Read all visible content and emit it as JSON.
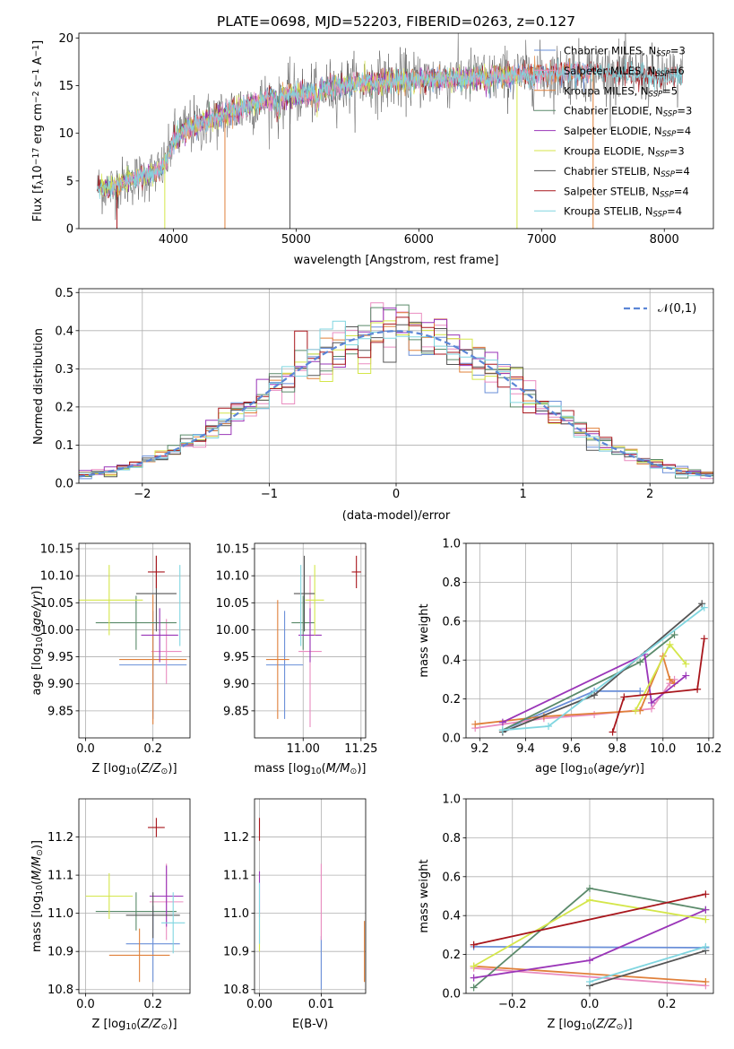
{
  "colors": {
    "chabrier_miles": "#6a8fd8",
    "salpeter_miles": "#e98cc0",
    "kroupa_miles": "#e0803a",
    "chabrier_elodie": "#5a8a6a",
    "salpeter_elodie": "#9a35b8",
    "kroupa_elodie": "#d4e64a",
    "chabrier_stelib": "#555555",
    "salpeter_stelib": "#a8161c",
    "kroupa_stelib": "#80d6e0",
    "normal": "#5b86d6"
  },
  "chart_data": [
    {
      "type": "line",
      "title": "PLATE=0698, MJD=52203, FIBERID=0263, z=0.127",
      "xlabel": "wavelength [Angstrom, rest frame]",
      "ylabel": "Flux [f_λ 10^-17 erg cm^-2 s^-1 A^-1]",
      "xlim": [
        3230,
        8400
      ],
      "ylim": [
        0,
        20.5
      ],
      "xticks": [
        4000,
        5000,
        6000,
        7000,
        8000
      ],
      "yticks": [
        0,
        5,
        10,
        15,
        20
      ],
      "legend": "top-right",
      "series": [
        {
          "name": "Chabrier MILES, N_SSP=3",
          "key": "chabrier_miles"
        },
        {
          "name": "Salpeter MILES, N_SSP=6",
          "key": "salpeter_miles"
        },
        {
          "name": "Kroupa MILES, N_SSP=5",
          "key": "kroupa_miles"
        },
        {
          "name": "Chabrier ELODIE, N_SSP=3",
          "key": "chabrier_elodie"
        },
        {
          "name": "Salpeter ELODIE, N_SSP=4",
          "key": "salpeter_elodie"
        },
        {
          "name": "Kroupa ELODIE, N_SSP=3",
          "key": "kroupa_elodie"
        },
        {
          "name": "Chabrier STELIB, N_SSP=4",
          "key": "chabrier_stelib"
        },
        {
          "name": "Salpeter STELIB, N_SSP=4",
          "key": "salpeter_stelib"
        },
        {
          "name": "Kroupa STELIB, N_SSP=4",
          "key": "kroupa_stelib"
        }
      ],
      "continuum": {
        "x": [
          3380,
          3500,
          3600,
          3700,
          3800,
          3900,
          3950,
          4000,
          4100,
          4300,
          4500,
          4700,
          4900,
          5100,
          5300,
          5500,
          5800,
          6100,
          6400,
          6700,
          7000,
          7300,
          7600,
          7900,
          8150
        ],
        "y": [
          4.3,
          4.3,
          4.9,
          5.3,
          5.6,
          6.2,
          7.2,
          9.3,
          10.4,
          11.4,
          12.4,
          13.3,
          13.9,
          14.1,
          14.8,
          15.2,
          15.5,
          15.7,
          15.8,
          16.0,
          16.2,
          16.4,
          16.4,
          16.0,
          15.8
        ]
      }
    },
    {
      "type": "bar",
      "xlabel": "(data-model)/error",
      "ylabel": "Normed distribution",
      "xlim": [
        -2.5,
        2.5
      ],
      "ylim": [
        0,
        0.51
      ],
      "xticks": [
        -2,
        -1,
        0,
        1,
        2
      ],
      "yticks": [
        0.0,
        0.1,
        0.2,
        0.3,
        0.4,
        0.5
      ],
      "bin_width": 0.1,
      "legend": "top-right",
      "reference_series": {
        "name": "𝒩(0,1)",
        "mean": 0,
        "sigma": 1
      }
    },
    {
      "type": "scatter",
      "xlabel": "Z [log10(Z/Z⊙)]",
      "ylabel": "age  [log10(age/yr)]",
      "xlim": [
        -0.02,
        0.31
      ],
      "ylim": [
        9.8,
        10.16
      ],
      "xticks": [
        0.0,
        0.2
      ],
      "yticks": [
        9.85,
        9.9,
        9.95,
        10.0,
        10.05,
        10.1,
        10.15
      ],
      "series": [
        {
          "key": "chabrier_miles",
          "x": 0.2,
          "y": 9.935,
          "xerr": 0.1,
          "yerr": 0.1
        },
        {
          "key": "salpeter_miles",
          "x": 0.24,
          "y": 9.96,
          "xerr": 0.045,
          "yerr": 0.06
        },
        {
          "key": "kroupa_miles",
          "x": 0.2,
          "y": 9.945,
          "xerr": 0.1,
          "yerr": 0.12
        },
        {
          "key": "chabrier_elodie",
          "x": 0.15,
          "y": 10.013,
          "xerr": 0.12,
          "yerr": 0.05
        },
        {
          "key": "salpeter_elodie",
          "x": 0.22,
          "y": 9.99,
          "xerr": 0.055,
          "yerr": 0.05
        },
        {
          "key": "kroupa_elodie",
          "x": 0.07,
          "y": 10.055,
          "xerr": 0.1,
          "yerr": 0.065
        },
        {
          "key": "chabrier_stelib",
          "x": 0.21,
          "y": 10.067,
          "xerr": 0.06,
          "yerr": 0.07
        },
        {
          "key": "salpeter_stelib",
          "x": 0.21,
          "y": 10.107,
          "xerr": 0.025,
          "yerr": 0.03
        },
        {
          "key": "kroupa_stelib",
          "x": 0.28,
          "y": 10.045,
          "xerr": 0.0,
          "yerr": 0.075
        }
      ]
    },
    {
      "type": "scatter",
      "xlabel": "mass [log10(M/M⊙)]",
      "ylabel": "",
      "xlim": [
        10.79,
        11.27
      ],
      "ylim": [
        9.8,
        10.16
      ],
      "xticks": [
        10.75,
        11.0,
        11.25
      ],
      "yticks": [
        9.85,
        9.9,
        9.95,
        10.0,
        10.05,
        10.1,
        10.15
      ],
      "series": [
        {
          "key": "chabrier_miles",
          "x": 10.92,
          "y": 9.935,
          "xerr": 0.08,
          "yerr": 0.1
        },
        {
          "key": "salpeter_miles",
          "x": 11.03,
          "y": 9.96,
          "xerr": 0.05,
          "yerr": 0.14
        },
        {
          "key": "kroupa_miles",
          "x": 10.89,
          "y": 9.945,
          "xerr": 0.05,
          "yerr": 0.11
        },
        {
          "key": "chabrier_elodie",
          "x": 11.0,
          "y": 10.013,
          "xerr": 0.05,
          "yerr": 0.05
        },
        {
          "key": "salpeter_elodie",
          "x": 11.03,
          "y": 9.99,
          "xerr": 0.05,
          "yerr": 0.05
        },
        {
          "key": "kroupa_elodie",
          "x": 11.05,
          "y": 10.055,
          "xerr": 0.04,
          "yerr": 0.065
        },
        {
          "key": "chabrier_stelib",
          "x": 11.005,
          "y": 10.067,
          "xerr": 0.045,
          "yerr": 0.07
        },
        {
          "key": "salpeter_stelib",
          "x": 11.23,
          "y": 10.107,
          "xerr": 0.02,
          "yerr": 0.03
        },
        {
          "key": "kroupa_stelib",
          "x": 10.99,
          "y": 10.045,
          "xerr": 0.0,
          "yerr": 0.075
        }
      ]
    },
    {
      "type": "line",
      "xlabel": "age  [log10(age/yr)]",
      "ylabel": "mass weight",
      "xlim": [
        9.14,
        10.22
      ],
      "ylim": [
        0,
        1.0
      ],
      "xticks": [
        9.2,
        9.4,
        9.6,
        9.8,
        10.0,
        10.2
      ],
      "yticks": [
        0.0,
        0.2,
        0.4,
        0.6,
        0.8,
        1.0
      ],
      "series": [
        {
          "key": "chabrier_miles",
          "x": [
            9.3,
            9.7,
            9.9
          ],
          "y": [
            0.04,
            0.24,
            0.24
          ]
        },
        {
          "key": "salpeter_miles",
          "x": [
            9.18,
            9.48,
            9.7,
            9.95,
            10.03,
            10.05
          ],
          "y": [
            0.05,
            0.1,
            0.12,
            0.15,
            0.28,
            0.3
          ]
        },
        {
          "key": "kroupa_miles",
          "x": [
            9.18,
            9.48,
            9.9,
            10.0,
            10.03,
            10.05
          ],
          "y": [
            0.07,
            0.11,
            0.14,
            0.42,
            0.3,
            0.28
          ]
        },
        {
          "key": "chabrier_elodie",
          "x": [
            9.3,
            9.9,
            10.05
          ],
          "y": [
            0.04,
            0.39,
            0.53
          ]
        },
        {
          "key": "salpeter_elodie",
          "x": [
            9.3,
            9.92,
            9.95,
            10.1
          ],
          "y": [
            0.08,
            0.43,
            0.18,
            0.32
          ]
        },
        {
          "key": "kroupa_elodie",
          "x": [
            9.88,
            10.03,
            10.1
          ],
          "y": [
            0.14,
            0.48,
            0.38
          ]
        },
        {
          "key": "chabrier_stelib",
          "x": [
            9.3,
            9.7,
            10.17
          ],
          "y": [
            0.03,
            0.22,
            0.69
          ]
        },
        {
          "key": "salpeter_stelib",
          "x": [
            9.78,
            9.83,
            10.15,
            10.18
          ],
          "y": [
            0.03,
            0.21,
            0.25,
            0.51
          ]
        },
        {
          "key": "kroupa_stelib",
          "x": [
            9.3,
            9.5,
            10.18
          ],
          "y": [
            0.04,
            0.06,
            0.67
          ]
        }
      ]
    },
    {
      "type": "scatter",
      "xlabel": "Z [log10(Z/Z⊙)]",
      "ylabel": "mass [log10(M/M⊙)]",
      "xlim": [
        -0.02,
        0.31
      ],
      "ylim": [
        10.79,
        11.3
      ],
      "xticks": [
        0.0,
        0.2
      ],
      "yticks": [
        10.8,
        10.9,
        11.0,
        11.1,
        11.2
      ],
      "series": [
        {
          "key": "chabrier_miles",
          "x": 0.2,
          "y": 10.92,
          "xerr": 0.08,
          "yerr": 0.1
        },
        {
          "key": "salpeter_miles",
          "x": 0.24,
          "y": 11.03,
          "xerr": 0.05,
          "yerr": 0.1
        },
        {
          "key": "kroupa_miles",
          "x": 0.16,
          "y": 10.89,
          "xerr": 0.09,
          "yerr": 0.07
        },
        {
          "key": "chabrier_elodie",
          "x": 0.15,
          "y": 11.005,
          "xerr": 0.12,
          "yerr": 0.05
        },
        {
          "key": "salpeter_elodie",
          "x": 0.24,
          "y": 11.045,
          "xerr": 0.05,
          "yerr": 0.08
        },
        {
          "key": "kroupa_elodie",
          "x": 0.07,
          "y": 11.045,
          "xerr": 0.07,
          "yerr": 0.06
        },
        {
          "key": "chabrier_stelib",
          "x": 0.2,
          "y": 10.995,
          "xerr": 0.08,
          "yerr": 0.06
        },
        {
          "key": "salpeter_stelib",
          "x": 0.21,
          "y": 11.225,
          "xerr": 0.025,
          "yerr": 0.025
        },
        {
          "key": "kroupa_stelib",
          "x": 0.26,
          "y": 10.975,
          "xerr": 0.035,
          "yerr": 0.08
        }
      ]
    },
    {
      "type": "scatter",
      "xlabel": "E(B-V)",
      "ylabel": "",
      "xlim": [
        -0.0008,
        0.0172
      ],
      "ylim": [
        10.79,
        11.3
      ],
      "xticks": [
        0.0,
        0.01
      ],
      "yticks": [
        10.8,
        10.9,
        11.0,
        11.1,
        11.2
      ],
      "series": [
        {
          "key": "chabrier_miles",
          "x": 0.01,
          "y": 10.87,
          "yerr": 0.07
        },
        {
          "key": "salpeter_miles",
          "x": 0.01,
          "y": 11.03,
          "yerr": 0.1
        },
        {
          "key": "kroupa_miles",
          "x": 0.017,
          "y": 10.9,
          "yerr": 0.08
        },
        {
          "key": "salpeter_elodie",
          "x": 0.0,
          "y": 11.05,
          "yerr": 0.06
        },
        {
          "key": "kroupa_elodie",
          "x": 0.0,
          "y": 10.95,
          "yerr": 0.05
        },
        {
          "key": "salpeter_stelib",
          "x": 0.0,
          "y": 11.22,
          "yerr": 0.03
        },
        {
          "key": "kroupa_stelib",
          "x": 0.0,
          "y": 11.0,
          "yerr": 0.08
        }
      ]
    },
    {
      "type": "line",
      "xlabel": "Z [log10(Z/Z⊙)]",
      "ylabel": "mass weight",
      "xlim": [
        -0.32,
        0.32
      ],
      "ylim": [
        0,
        1.0
      ],
      "xticks": [
        -0.2,
        0.0,
        0.2
      ],
      "yticks": [
        0.0,
        0.2,
        0.4,
        0.6,
        0.8,
        1.0
      ],
      "series": [
        {
          "key": "chabrier_miles",
          "x": [
            -0.3,
            0.3
          ],
          "y": [
            0.24,
            0.235
          ]
        },
        {
          "key": "salpeter_miles",
          "x": [
            -0.3,
            0.3
          ],
          "y": [
            0.13,
            0.04
          ]
        },
        {
          "key": "kroupa_miles",
          "x": [
            -0.3,
            0.3
          ],
          "y": [
            0.14,
            0.06
          ]
        },
        {
          "key": "chabrier_elodie",
          "x": [
            -0.3,
            0.0,
            0.3
          ],
          "y": [
            0.03,
            0.54,
            0.43
          ]
        },
        {
          "key": "salpeter_elodie",
          "x": [
            -0.3,
            0.0,
            0.3
          ],
          "y": [
            0.08,
            0.17,
            0.43
          ]
        },
        {
          "key": "kroupa_elodie",
          "x": [
            -0.3,
            0.0,
            0.3
          ],
          "y": [
            0.14,
            0.48,
            0.38
          ]
        },
        {
          "key": "chabrier_stelib",
          "x": [
            0.0,
            0.3
          ],
          "y": [
            0.04,
            0.22
          ]
        },
        {
          "key": "salpeter_stelib",
          "x": [
            -0.3,
            0.3
          ],
          "y": [
            0.25,
            0.51
          ]
        },
        {
          "key": "kroupa_stelib",
          "x": [
            0.0,
            0.3
          ],
          "y": [
            0.06,
            0.24
          ]
        }
      ]
    }
  ]
}
